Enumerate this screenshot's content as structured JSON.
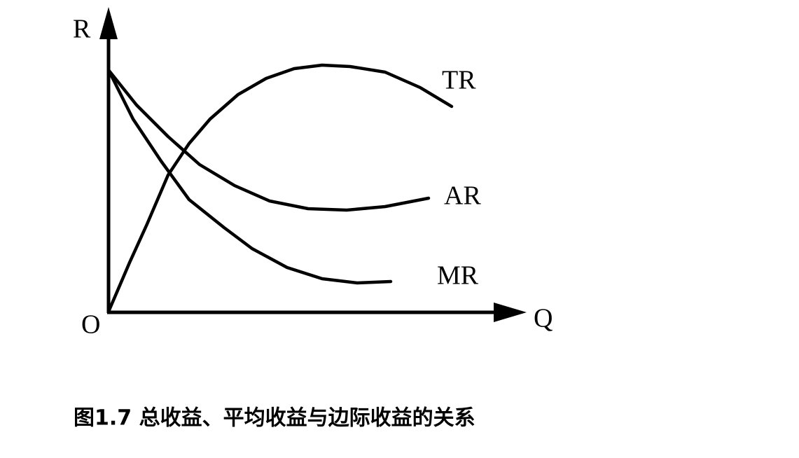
{
  "axes": {
    "y_label": "R",
    "x_label": "Q",
    "origin_label": "O"
  },
  "curves": [
    {
      "label": "TR"
    },
    {
      "label": "AR"
    },
    {
      "label": "MR"
    }
  ],
  "caption": "图1.7 总收益、平均收益与边际收益的关系"
}
